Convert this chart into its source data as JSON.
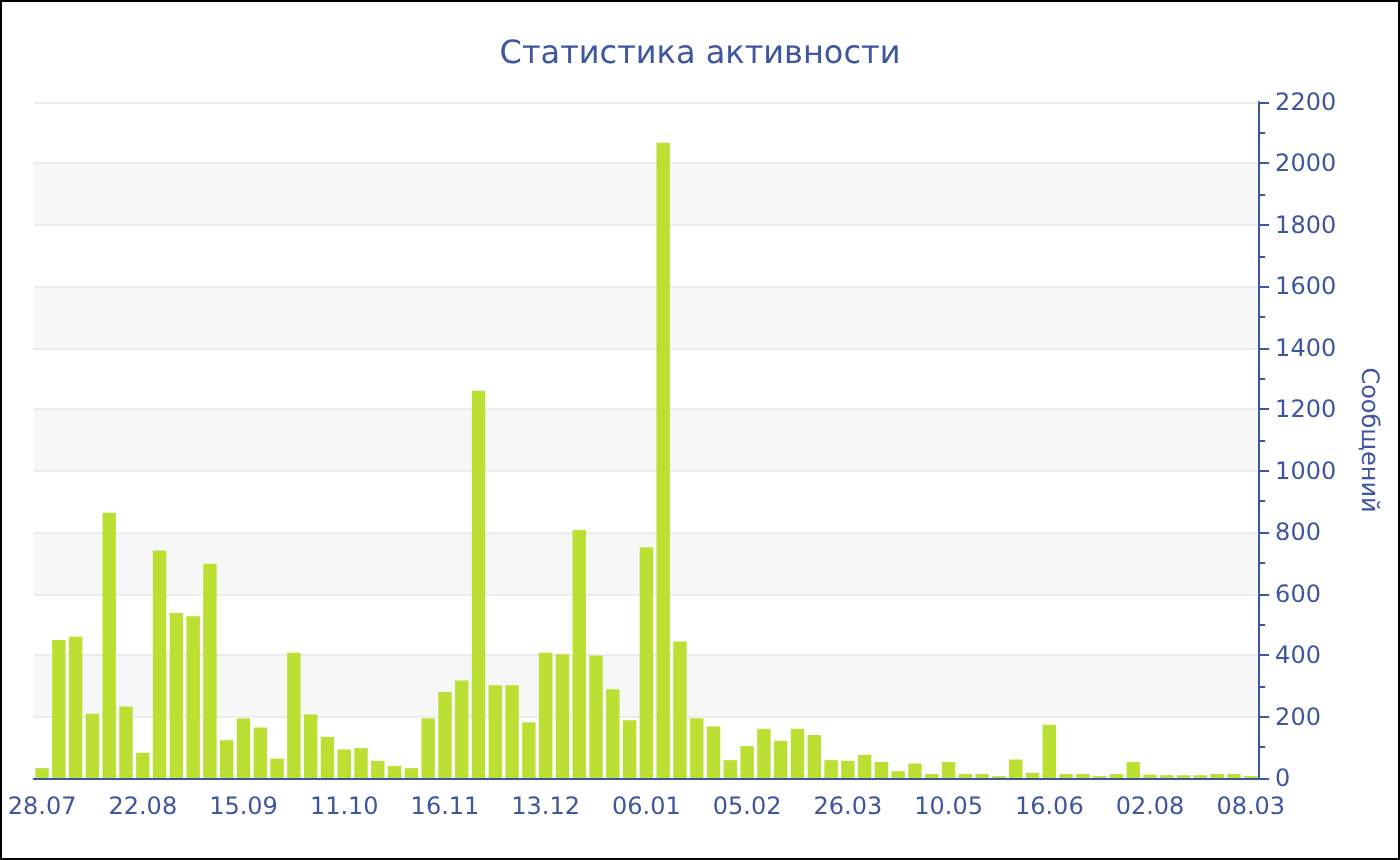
{
  "chart_data": {
    "type": "bar",
    "title": "Статистика активности",
    "ylabel": "Сообщений",
    "categories": [
      "28.07",
      null,
      null,
      null,
      null,
      null,
      "22.08",
      null,
      null,
      null,
      null,
      null,
      "15.09",
      null,
      null,
      null,
      null,
      null,
      "11.10",
      null,
      null,
      null,
      null,
      null,
      "16.11",
      null,
      null,
      null,
      null,
      null,
      "13.12",
      null,
      null,
      null,
      null,
      null,
      "06.01",
      null,
      null,
      null,
      null,
      null,
      "05.02",
      null,
      null,
      null,
      null,
      null,
      "26.03",
      null,
      null,
      null,
      null,
      null,
      "10.05",
      null,
      null,
      null,
      null,
      null,
      "16.06",
      null,
      null,
      null,
      null,
      null,
      "02.08",
      null,
      null,
      null,
      null,
      null,
      "08.03"
    ],
    "values": [
      32,
      449,
      460,
      209,
      863,
      233,
      82,
      740,
      537,
      526,
      697,
      123,
      194,
      164,
      63,
      408,
      207,
      134,
      93,
      97,
      56,
      39,
      32,
      194,
      280,
      317,
      1260,
      302,
      302,
      181,
      408,
      403,
      807,
      399,
      289,
      188,
      751,
      2067,
      444,
      194,
      168,
      58,
      104,
      160,
      121,
      160,
      140,
      58,
      56,
      75,
      52,
      22,
      47,
      13,
      52,
      13,
      13,
      6,
      60,
      17,
      173,
      13,
      13,
      6,
      13,
      52,
      11,
      9,
      9,
      9,
      13,
      13,
      6
    ],
    "color": "#bbe033",
    "ylim": [
      0,
      2200
    ],
    "yticks": [
      0,
      200,
      400,
      600,
      800,
      1000,
      1200,
      1400,
      1600,
      1800,
      2000,
      2200
    ],
    "grid": "y"
  }
}
